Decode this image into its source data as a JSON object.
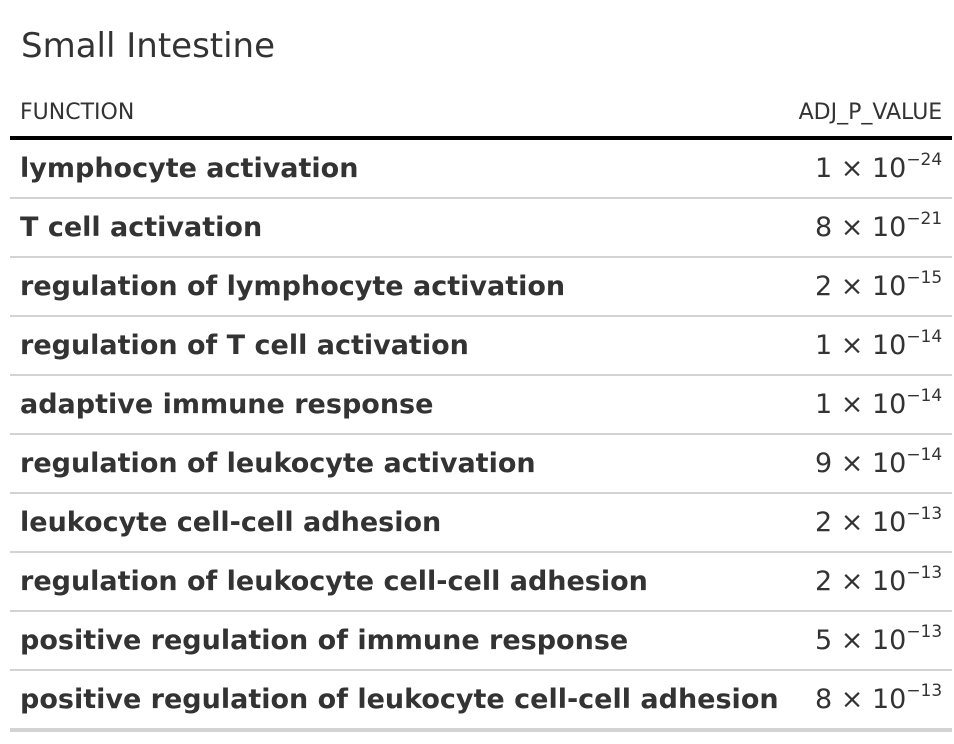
{
  "title": "Small Intestine",
  "columns": {
    "function": "FUNCTION",
    "adj_p_value": "ADJ_P_VALUE"
  },
  "times_symbol": "×",
  "rows": [
    {
      "function": "lymphocyte activation",
      "mantissa": "1",
      "base": "10",
      "exponent": "−24"
    },
    {
      "function": "T cell activation",
      "mantissa": "8",
      "base": "10",
      "exponent": "−21"
    },
    {
      "function": "regulation of lymphocyte activation",
      "mantissa": "2",
      "base": "10",
      "exponent": "−15"
    },
    {
      "function": "regulation of T cell activation",
      "mantissa": "1",
      "base": "10",
      "exponent": "−14"
    },
    {
      "function": "adaptive immune response",
      "mantissa": "1",
      "base": "10",
      "exponent": "−14"
    },
    {
      "function": "regulation of leukocyte activation",
      "mantissa": "9",
      "base": "10",
      "exponent": "−14"
    },
    {
      "function": "leukocyte cell-cell adhesion",
      "mantissa": "2",
      "base": "10",
      "exponent": "−13"
    },
    {
      "function": "regulation of leukocyte cell-cell adhesion",
      "mantissa": "2",
      "base": "10",
      "exponent": "−13"
    },
    {
      "function": "positive regulation of immune response",
      "mantissa": "5",
      "base": "10",
      "exponent": "−13"
    },
    {
      "function": "positive regulation of leukocyte cell-cell adhesion",
      "mantissa": "8",
      "base": "10",
      "exponent": "−13"
    }
  ]
}
